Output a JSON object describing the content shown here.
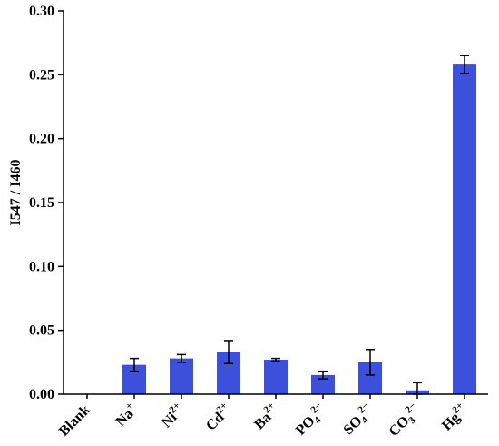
{
  "chart_data": {
    "type": "bar",
    "title": "",
    "xlabel": "",
    "ylabel": "I547 / I460",
    "ylim": [
      0,
      0.3
    ],
    "yticks": [
      "0.00",
      "0.05",
      "0.10",
      "0.15",
      "0.20",
      "0.25",
      "0.30"
    ],
    "grid": false,
    "bar_color": "#3d50dc",
    "categories": [
      {
        "base": "Blank",
        "sub": "",
        "sup": ""
      },
      {
        "base": "Na",
        "sub": "",
        "sup": "+"
      },
      {
        "base": "Ni",
        "sub": "",
        "sup": "2+"
      },
      {
        "base": "Cd",
        "sub": "",
        "sup": "2+"
      },
      {
        "base": "Ba",
        "sub": "",
        "sup": "2+"
      },
      {
        "base": "PO",
        "sub": "4",
        "sup": "2−"
      },
      {
        "base": "SO",
        "sub": "4",
        "sup": "2−"
      },
      {
        "base": "CO",
        "sub": "3",
        "sup": "2−"
      },
      {
        "base": "Hg",
        "sub": "",
        "sup": "2+"
      }
    ],
    "values": [
      0.0,
      0.023,
      0.028,
      0.033,
      0.027,
      0.015,
      0.025,
      0.003,
      0.258
    ],
    "errors": [
      0.0,
      0.005,
      0.003,
      0.009,
      0.001,
      0.003,
      0.01,
      0.006,
      0.007
    ]
  }
}
